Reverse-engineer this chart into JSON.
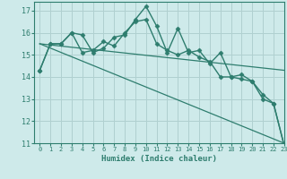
{
  "xlabel": "Humidex (Indice chaleur)",
  "xlim": [
    -0.5,
    23
  ],
  "ylim": [
    11,
    17.4
  ],
  "yticks": [
    11,
    12,
    13,
    14,
    15,
    16,
    17
  ],
  "xticks": [
    0,
    1,
    2,
    3,
    4,
    5,
    6,
    7,
    8,
    9,
    10,
    11,
    12,
    13,
    14,
    15,
    16,
    17,
    18,
    19,
    20,
    21,
    22,
    23
  ],
  "background_color": "#ceeaea",
  "grid_color": "#b0d0d0",
  "line_color": "#2e7d6e",
  "series": [
    {
      "x": [
        0,
        1,
        2,
        3,
        4,
        5,
        6,
        7,
        8,
        9,
        10,
        11,
        12,
        13,
        14,
        15,
        16,
        17,
        18,
        19,
        20,
        21,
        22,
        23
      ],
      "y": [
        14.3,
        15.5,
        15.5,
        16.0,
        15.9,
        15.1,
        15.3,
        15.8,
        15.9,
        16.6,
        17.2,
        16.3,
        15.1,
        16.2,
        15.1,
        15.2,
        14.6,
        15.1,
        14.0,
        14.1,
        13.8,
        13.2,
        12.8,
        10.9
      ],
      "marker": "D",
      "markersize": 2.5,
      "linewidth": 1.0
    },
    {
      "x": [
        0,
        1,
        2,
        3,
        4,
        5,
        6,
        7,
        8,
        9,
        10,
        11,
        12,
        13,
        14,
        15,
        16,
        17,
        18,
        19,
        20,
        21,
        22,
        23
      ],
      "y": [
        14.3,
        15.5,
        15.5,
        16.0,
        15.1,
        15.2,
        15.6,
        15.4,
        16.0,
        16.5,
        16.6,
        15.5,
        15.2,
        15.0,
        15.2,
        14.9,
        14.7,
        14.0,
        14.0,
        13.9,
        13.8,
        13.0,
        12.8,
        10.9
      ],
      "marker": "D",
      "markersize": 2.5,
      "linewidth": 1.0
    },
    {
      "x": [
        0,
        23
      ],
      "y": [
        15.5,
        14.3
      ],
      "marker": null,
      "linewidth": 0.9
    },
    {
      "x": [
        0,
        23
      ],
      "y": [
        15.5,
        11.0
      ],
      "marker": null,
      "linewidth": 0.9
    }
  ]
}
